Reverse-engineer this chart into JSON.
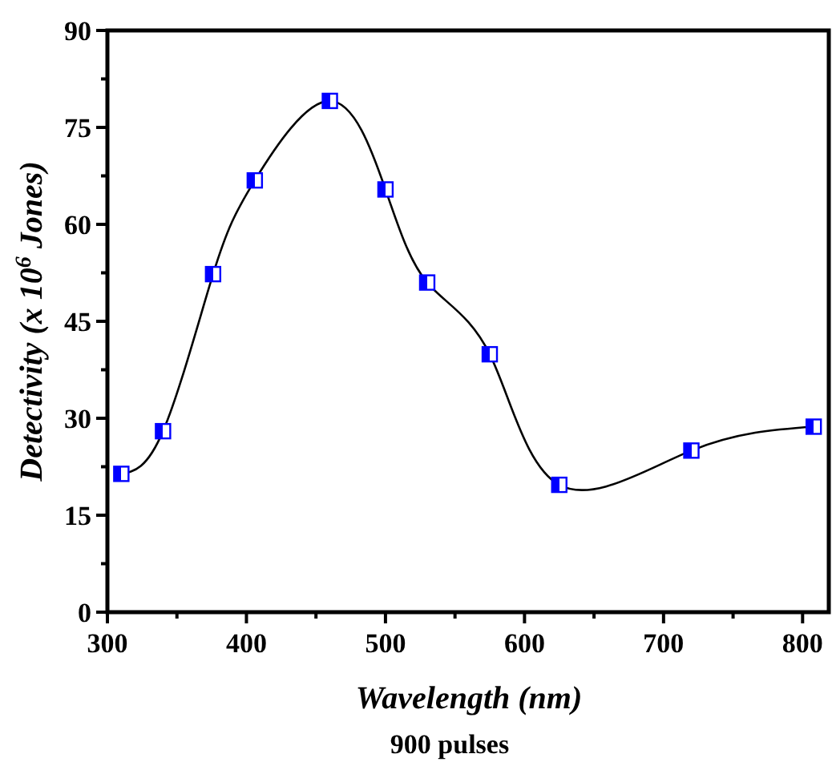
{
  "chart_data": {
    "type": "line",
    "xlabel": "Wavelength (nm)",
    "ylabel": "Detectivity (x 10$^{6}$ Jones)",
    "annotations": [
      "900 pulses"
    ],
    "x": [
      310,
      340,
      376,
      406,
      460,
      500,
      530,
      575,
      625,
      720,
      808
    ],
    "series": [
      {
        "color": "#0000ff",
        "values": [
          21.4,
          28.0,
          52.3,
          66.8,
          79.1,
          65.4,
          51.0,
          39.9,
          19.7,
          25.0,
          28.7
        ]
      }
    ],
    "xlim": [
      300,
      820
    ],
    "xticks": [
      300,
      {
        "value": 350,
        "label": null
      },
      400,
      {
        "value": 450,
        "label": null
      },
      500,
      {
        "value": 550,
        "label": null
      },
      600,
      {
        "value": 650,
        "label": null
      },
      700,
      {
        "value": 750,
        "label": null
      },
      800
    ],
    "ylim": [
      0,
      90
    ],
    "yticks": [
      0,
      {
        "value": 7.5,
        "label": null
      },
      15,
      {
        "value": 22.5,
        "label": null
      },
      30,
      {
        "value": 37.5,
        "label": null
      },
      45,
      {
        "value": 52.5,
        "label": null
      },
      60,
      {
        "value": 67.5,
        "label": null
      },
      75,
      {
        "value": 82.5,
        "label": null
      },
      90
    ],
    "grid": false,
    "marker": "square",
    "line_style": "solid"
  }
}
